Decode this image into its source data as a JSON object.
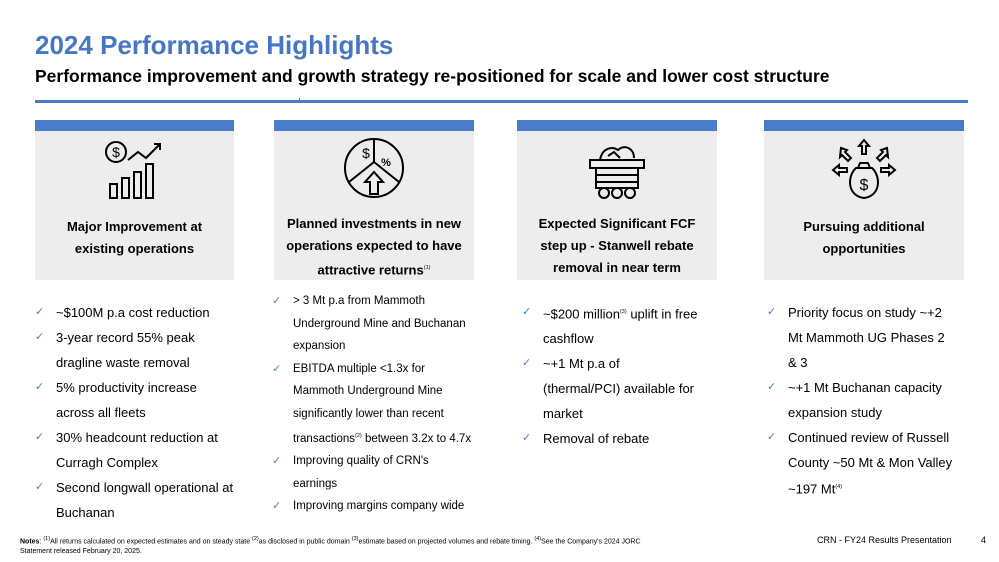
{
  "header": {
    "title": "2024 Performance Highlights",
    "subtitle": "Performance improvement and growth strategy re-positioned for scale and lower cost structure"
  },
  "cards": [
    {
      "icon": "money-growth-chart-icon",
      "label_line1": "Major Improvement at",
      "label_line2": "existing operations",
      "bullets": [
        {
          "lines": [
            "~$100M p.a cost reduction"
          ]
        },
        {
          "lines": [
            "3-year record 55% peak",
            "dragline waste removal"
          ]
        },
        {
          "lines": [
            "5% productivity increase",
            "across all fleets"
          ]
        },
        {
          "lines": [
            "30% headcount reduction at",
            "Curragh Complex"
          ]
        },
        {
          "lines": [
            "Second longwall operational at",
            "Buchanan"
          ]
        }
      ]
    },
    {
      "icon": "investment-pie-arrow-icon",
      "label_line1": "Planned investments in new",
      "label_line2": "operations expected to have",
      "label_line3": "attractive returns",
      "label_sup": "(1)",
      "bullets": [
        {
          "lines": [
            "> 3 Mt p.a from Mammoth",
            "Underground Mine and Buchanan",
            "expansion"
          ]
        },
        {
          "lines": [
            "EBITDA multiple <1.3x for",
            "Mammoth Underground Mine",
            "significantly lower than recent"
          ],
          "last_pre": "transactions",
          "last_sup": "(2)",
          "last_post": " between 3.2x to 4.7x"
        },
        {
          "lines": [
            "Improving quality of CRN's",
            "earnings"
          ]
        },
        {
          "lines": [
            "Improving margins company wide"
          ]
        }
      ]
    },
    {
      "icon": "mine-cart-icon",
      "label_line1": "Expected Significant FCF",
      "label_line2": "step up -  Stanwell rebate",
      "label_line3": "removal in near term",
      "bullets": [
        {
          "pre": "~$200 million",
          "sup": "(3)",
          "post": " uplift in free",
          "lines": [
            "cashflow"
          ]
        },
        {
          "lines": [
            "~+1 Mt p.a of",
            "(thermal/PCI) available for",
            "market"
          ]
        },
        {
          "lines": [
            "Removal of rebate"
          ]
        }
      ]
    },
    {
      "icon": "money-bag-arrows-icon",
      "label_line1": "Pursuing additional",
      "label_line2": "opportunities",
      "bullets": [
        {
          "lines": [
            "Priority focus on study ~+2",
            "Mt Mammoth UG Phases 2",
            "& 3"
          ]
        },
        {
          "lines": [
            "~+1 Mt Buchanan capacity",
            "expansion study"
          ]
        },
        {
          "lines": [
            "Continued review of Russell",
            "County ~50 Mt & Mon Valley"
          ],
          "last_pre": "~197 Mt",
          "last_sup": "(4)",
          "last_post": ""
        }
      ]
    }
  ],
  "notes": {
    "label": "Notes",
    "s1": "(1)",
    "t1": "All returns calculated on expected estimates and on steady state ",
    "s2": "(2)",
    "t2": "as disclosed in public domain   ",
    "s3": "(3)",
    "t3": "estimate based on projected volumes and rebate timing. ",
    "s4": "(4)",
    "t4": "See the Company's 2024 JORC",
    "line2": "Statement released February 20, 2025."
  },
  "footer": {
    "presentation": "CRN - FY24 Results Presentation",
    "page": "4"
  },
  "colors": {
    "accent": "#4A7CC9",
    "title": "#4677C4",
    "card_bg": "#EDEDED"
  }
}
